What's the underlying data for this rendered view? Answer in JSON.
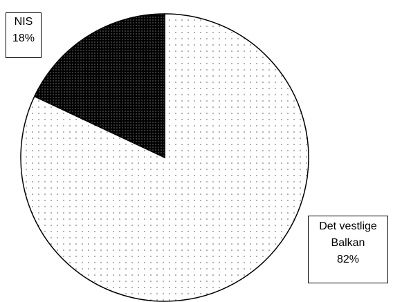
{
  "chart_data": {
    "type": "pie",
    "title": "",
    "start_angle": "12 o'clock",
    "direction": "clockwise",
    "border_color": "#000000",
    "slices": [
      {
        "label_lines": [
          "Det vestlige",
          "Balkan"
        ],
        "percent_label": "82%",
        "value": 82,
        "fill": "light dotted",
        "dot_color": "#555555",
        "background": "#ffffff",
        "label_position": "bottom-right"
      },
      {
        "label_lines": [
          "NIS"
        ],
        "percent_label": "18%",
        "value": 18,
        "fill": "dark dotted",
        "dot_color": "#bbbbbb",
        "background": "#000000",
        "label_position": "top-left"
      }
    ]
  }
}
